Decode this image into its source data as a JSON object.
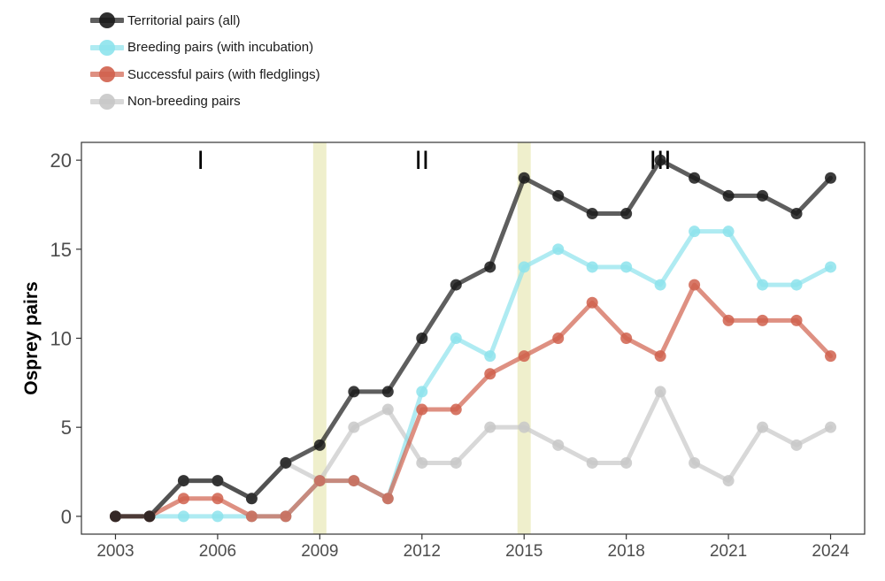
{
  "chart_data": {
    "type": "line",
    "title": "",
    "xlabel": "",
    "ylabel": "Osprey pairs",
    "x": [
      2003,
      2004,
      2005,
      2006,
      2007,
      2008,
      2009,
      2010,
      2011,
      2012,
      2013,
      2014,
      2015,
      2016,
      2017,
      2018,
      2019,
      2020,
      2021,
      2022,
      2023,
      2024
    ],
    "xlim": [
      2002.0,
      2025.0
    ],
    "ylim": [
      -1.0,
      21.0
    ],
    "xticks": [
      2003,
      2006,
      2009,
      2012,
      2015,
      2018,
      2021,
      2024
    ],
    "yticks": [
      0,
      5,
      10,
      15,
      20
    ],
    "grid": false,
    "legend_position": "top-left",
    "series": [
      {
        "name": "Non-breeding pairs",
        "color": "#c8c8c8",
        "values": [
          0,
          0,
          2,
          2,
          1,
          3,
          2,
          5,
          6,
          3,
          3,
          5,
          5,
          4,
          3,
          3,
          7,
          3,
          2,
          5,
          4,
          5
        ]
      },
      {
        "name": "Breeding pairs (with incubation)",
        "color": "#8de3ec",
        "values": [
          0,
          0,
          0,
          0,
          0,
          0,
          2,
          2,
          1,
          7,
          10,
          9,
          14,
          15,
          14,
          14,
          13,
          16,
          16,
          13,
          13,
          14
        ]
      },
      {
        "name": "Successful pairs (with fledglings)",
        "color": "#d0614d",
        "values": [
          0,
          0,
          1,
          1,
          0,
          0,
          2,
          2,
          1,
          6,
          6,
          8,
          9,
          10,
          12,
          10,
          9,
          13,
          11,
          11,
          11,
          9
        ]
      },
      {
        "name": "Territorial pairs (all)",
        "color": "#1a1a1a",
        "values": [
          0,
          0,
          2,
          2,
          1,
          3,
          4,
          7,
          7,
          10,
          13,
          14,
          19,
          18,
          17,
          17,
          20,
          19,
          18,
          18,
          17,
          19
        ]
      }
    ],
    "legend_order": [
      3,
      1,
      2,
      0
    ],
    "shaded_years": [
      2009,
      2015
    ],
    "shade_color": "#efefcc",
    "periods": [
      {
        "label": "I",
        "x": 2005.5
      },
      {
        "label": "II",
        "x": 2012.0
      },
      {
        "label": "III",
        "x": 2019.0
      }
    ]
  }
}
